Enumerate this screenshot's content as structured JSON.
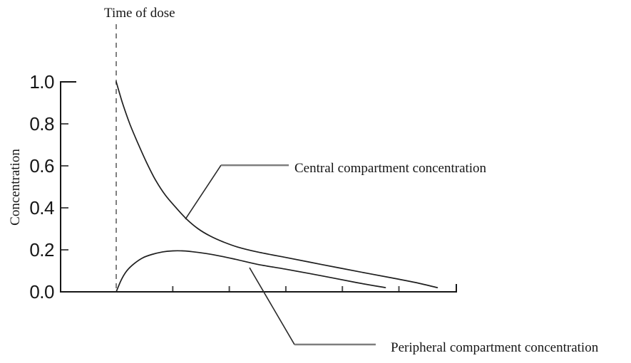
{
  "labels": {
    "time_of_dose": "Time of dose",
    "concentration": "Concentration",
    "central": "Central compartment concentration",
    "peripheral": "Peripheral compartment concentration"
  },
  "colors": {
    "curve": "#1f1f1f",
    "axis": "#161616",
    "tick": "#4d4d4d",
    "dashed_line": "#808080",
    "leader_diagonal": "#2a2a2a",
    "leader_horizontal": "#7e7e7e",
    "text": "#161616",
    "background": "#ffffff"
  },
  "chart_data": {
    "type": "line",
    "xlabel": "",
    "ylabel": "Concentration",
    "grid": false,
    "legend_position": "inline-annotations",
    "x_axis": {
      "range": [
        -1.0,
        6.0
      ],
      "ticks": [
        1,
        2,
        3,
        4,
        5
      ],
      "tick_labels_visible": false,
      "end_cap": true
    },
    "y_axis": {
      "range": [
        0,
        1.0
      ],
      "ticks": [
        {
          "value": 1.0,
          "label": "1.0"
        },
        {
          "value": 0.8,
          "label": "0.8"
        },
        {
          "value": 0.6,
          "label": "0.6"
        },
        {
          "value": 0.4,
          "label": "0.4"
        },
        {
          "value": 0.2,
          "label": "0.2"
        },
        {
          "value": 0.0,
          "label": "0.0"
        }
      ]
    },
    "dose_marker": {
      "label": "Time of dose",
      "t": 0,
      "style": "dashed-vertical"
    },
    "series": [
      {
        "name": "Central compartment concentration",
        "points": [
          [
            0.0,
            1.0
          ],
          [
            0.11,
            0.9
          ],
          [
            0.24,
            0.8
          ],
          [
            0.38,
            0.71
          ],
          [
            0.53,
            0.62
          ],
          [
            0.69,
            0.535
          ],
          [
            0.87,
            0.46
          ],
          [
            1.06,
            0.4
          ],
          [
            1.25,
            0.345
          ],
          [
            1.45,
            0.3
          ],
          [
            1.66,
            0.266
          ],
          [
            1.89,
            0.238
          ],
          [
            2.14,
            0.214
          ],
          [
            2.48,
            0.191
          ],
          [
            2.99,
            0.164
          ],
          [
            3.62,
            0.131
          ],
          [
            4.25,
            0.098
          ],
          [
            4.88,
            0.066
          ],
          [
            5.3,
            0.044
          ],
          [
            5.68,
            0.02
          ]
        ]
      },
      {
        "name": "Peripheral compartment concentration",
        "points": [
          [
            0.0,
            0.0
          ],
          [
            0.09,
            0.057
          ],
          [
            0.19,
            0.101
          ],
          [
            0.32,
            0.135
          ],
          [
            0.47,
            0.162
          ],
          [
            0.63,
            0.178
          ],
          [
            0.82,
            0.19
          ],
          [
            1.0,
            0.195
          ],
          [
            1.18,
            0.195
          ],
          [
            1.35,
            0.191
          ],
          [
            1.6,
            0.182
          ],
          [
            1.85,
            0.17
          ],
          [
            2.11,
            0.155
          ],
          [
            2.5,
            0.131
          ],
          [
            2.99,
            0.108
          ],
          [
            3.62,
            0.077
          ],
          [
            4.25,
            0.044
          ],
          [
            4.76,
            0.02
          ]
        ]
      }
    ],
    "annotations": [
      {
        "text": "Central compartment concentration",
        "series": "central",
        "anchor": [
          1.223,
          0.346
        ],
        "elbow": [
          1.854,
          0.603
        ],
        "line_end": [
          3.052,
          0.603
        ]
      },
      {
        "text": "Peripheral compartment concentration",
        "series": "peripheral",
        "anchor": [
          2.358,
          0.115
        ],
        "elbow": [
          3.153,
          -0.251
        ],
        "line_end": [
          4.59,
          -0.251
        ]
      }
    ]
  }
}
